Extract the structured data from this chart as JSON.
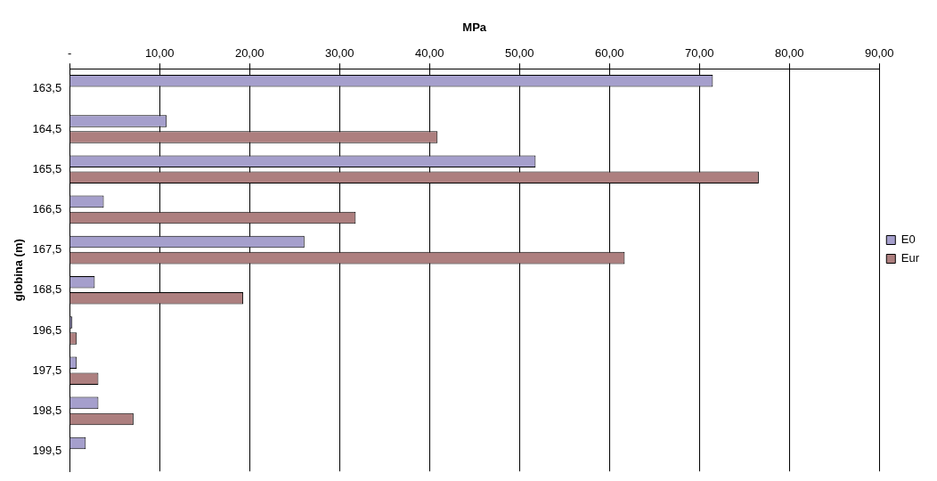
{
  "chart_data": {
    "type": "bar",
    "orientation": "horizontal",
    "xlabel": "MPa",
    "ylabel": "globina (m)",
    "categories": [
      "163,5",
      "164,5",
      "165,5",
      "166,5",
      "167,5",
      "168,5",
      "196,5",
      "197,5",
      "198,5",
      "199,5"
    ],
    "series": [
      {
        "name": "E0",
        "color": "#a59fcc",
        "values": [
          71.5,
          10.8,
          51.8,
          3.8,
          26.1,
          2.8,
          0.3,
          0.8,
          3.2,
          1.8
        ]
      },
      {
        "name": "Eur",
        "color": "#ad7f7f",
        "values": [
          null,
          40.9,
          76.6,
          31.8,
          61.7,
          19.3,
          0.8,
          3.2,
          7.1,
          null
        ]
      }
    ],
    "xlim": [
      0,
      90
    ],
    "xticks": [
      {
        "value": 0,
        "label": "-"
      },
      {
        "value": 10,
        "label": "10,00"
      },
      {
        "value": 20,
        "label": "20,00"
      },
      {
        "value": 30,
        "label": "30,00"
      },
      {
        "value": 40,
        "label": "40,00"
      },
      {
        "value": 50,
        "label": "50,00"
      },
      {
        "value": 60,
        "label": "60,00"
      },
      {
        "value": 70,
        "label": "70,00"
      },
      {
        "value": 80,
        "label": "80,00"
      },
      {
        "value": 90,
        "label": "90,00"
      }
    ],
    "grid": "x",
    "legend": "right"
  }
}
